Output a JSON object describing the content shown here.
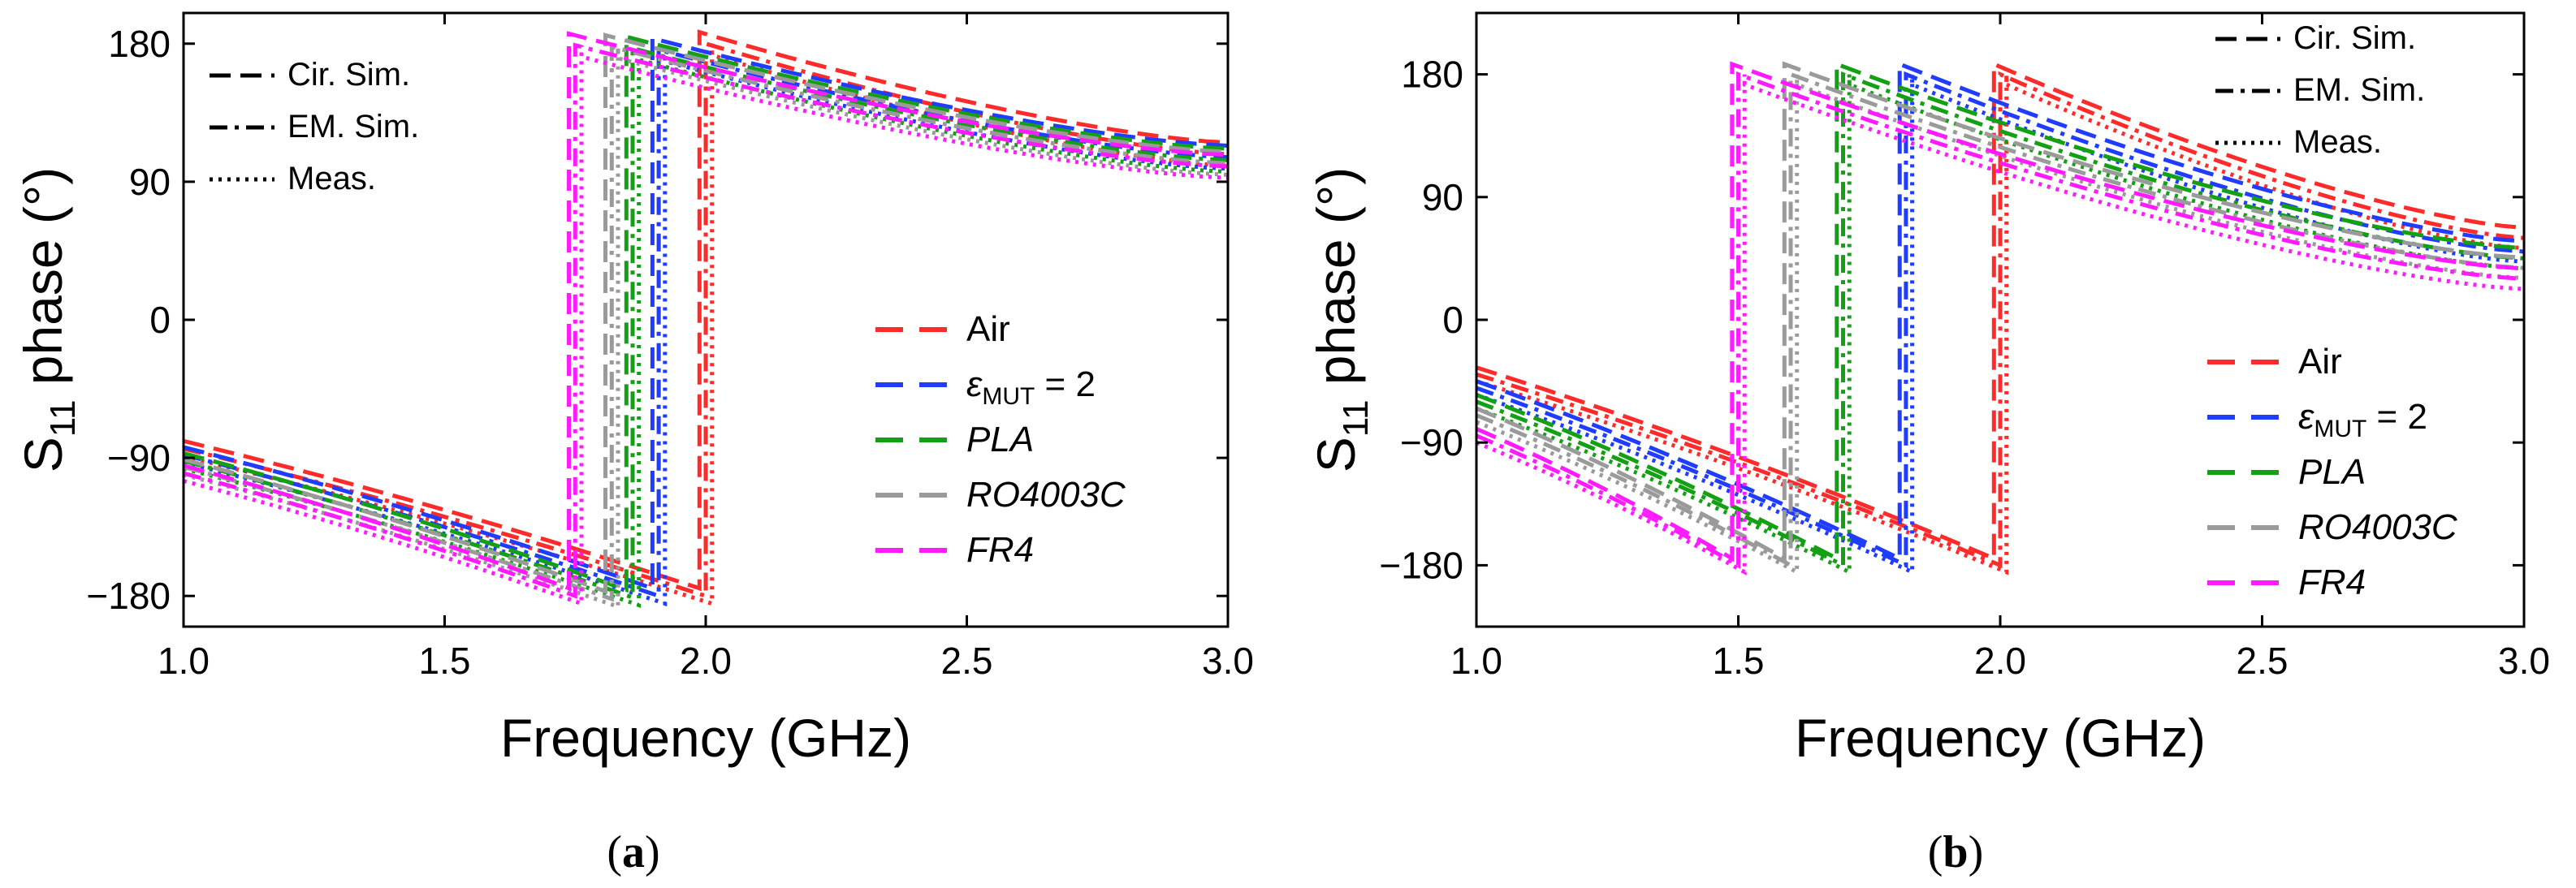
{
  "figure": {
    "panels": [
      {
        "caption_open": "(",
        "caption_letter": "a",
        "caption_close": ")"
      },
      {
        "caption_open": "(",
        "caption_letter": "b",
        "caption_close": ")"
      }
    ]
  },
  "styles_legend": [
    {
      "label": "Cir. Sim.",
      "style": "dash"
    },
    {
      "label": "EM. Sim.",
      "style": "dashdot"
    },
    {
      "label": "Meas.",
      "style": "dot"
    }
  ],
  "colors": {
    "Air": "#ff2a2a",
    "eps2": "#1f3cff",
    "PLA": "#14a014",
    "RO4003C": "#9a9a9a",
    "FR4": "#ff1aff"
  },
  "chart_data": [
    {
      "type": "line",
      "panel": "a",
      "title": "",
      "xlabel": "Frequency (GHz)",
      "ylabel_main": "S",
      "ylabel_sub": "11",
      "ylabel_rest": " phase (°)",
      "xlim": [
        1.0,
        3.0
      ],
      "ylim": [
        -200,
        200
      ],
      "xticks": [
        1.0,
        1.5,
        2.0,
        2.5,
        3.0
      ],
      "xtick_labels": [
        "1.0",
        "1.5",
        "2.0",
        "2.5",
        "3.0"
      ],
      "yticks": [
        180,
        90,
        0,
        -90,
        -180
      ],
      "ytick_labels": [
        "180",
        "90",
        "0",
        "−90",
        "−180"
      ],
      "legend_position": "lower-right",
      "series": [
        {
          "name": "Air",
          "label_main": "Air",
          "italic": false,
          "color_key": "Air",
          "jump_x": 2.0,
          "lower_start": -84,
          "lower_end": -180,
          "upper_start": 180,
          "upper_end": 108
        },
        {
          "name": "εMUT = 2",
          "label_main": "ε",
          "label_sub": "MUT",
          "label_rest": " = 2",
          "italic": false,
          "color_key": "eps2",
          "jump_x": 1.91,
          "lower_start": -88,
          "lower_end": -180,
          "upper_start": 176,
          "upper_end": 106
        },
        {
          "name": "PLA",
          "label_main": "PLA",
          "italic": true,
          "color_key": "PLA",
          "jump_x": 1.86,
          "lower_start": -92,
          "lower_end": -181,
          "upper_start": 177,
          "upper_end": 104
        },
        {
          "name": "RO4003C",
          "label_main": "RO4003C",
          "italic": true,
          "color_key": "RO4003C",
          "jump_x": 1.82,
          "lower_start": -96,
          "lower_end": -182,
          "upper_start": 178,
          "upper_end": 102
        },
        {
          "name": "FR4",
          "label_main": "FR4",
          "italic": true,
          "color_key": "FR4",
          "jump_x": 1.75,
          "lower_start": -100,
          "lower_end": -180,
          "upper_start": 179,
          "upper_end": 100
        }
      ]
    },
    {
      "type": "line",
      "panel": "b",
      "title": "",
      "xlabel": "Frequency (GHz)",
      "ylabel_main": "S",
      "ylabel_sub": "11",
      "ylabel_rest": " phase (°)",
      "xlim": [
        1.0,
        3.0
      ],
      "ylim": [
        -225,
        225
      ],
      "xticks": [
        1.0,
        1.5,
        2.0,
        2.5,
        3.0
      ],
      "xtick_labels": [
        "1.0",
        "1.5",
        "2.0",
        "2.5",
        "3.0"
      ],
      "yticks": [
        180,
        90,
        0,
        -90,
        -180
      ],
      "ytick_labels": [
        "180",
        "90",
        "0",
        "−90",
        "−180"
      ],
      "legend_position": "lower-right",
      "series": [
        {
          "name": "Air",
          "label_main": "Air",
          "italic": false,
          "color_key": "Air",
          "jump_x": 2.0,
          "lower_start": -40,
          "lower_end": -180,
          "upper_start": 180,
          "upper_end": 60
        },
        {
          "name": "εMUT = 2",
          "label_main": "ε",
          "label_sub": "MUT",
          "label_rest": " = 2",
          "italic": false,
          "color_key": "eps2",
          "jump_x": 1.82,
          "lower_start": -50,
          "lower_end": -180,
          "upper_start": 180,
          "upper_end": 50
        },
        {
          "name": "PLA",
          "label_main": "PLA",
          "italic": true,
          "color_key": "PLA",
          "jump_x": 1.7,
          "lower_start": -60,
          "lower_end": -180,
          "upper_start": 180,
          "upper_end": 45
        },
        {
          "name": "RO4003C",
          "label_main": "RO4003C",
          "italic": true,
          "color_key": "RO4003C",
          "jump_x": 1.6,
          "lower_start": -70,
          "lower_end": -180,
          "upper_start": 180,
          "upper_end": 38
        },
        {
          "name": "FR4",
          "label_main": "FR4",
          "italic": true,
          "color_key": "FR4",
          "jump_x": 1.5,
          "lower_start": -85,
          "lower_end": -180,
          "upper_start": 180,
          "upper_end": 30
        }
      ]
    }
  ]
}
